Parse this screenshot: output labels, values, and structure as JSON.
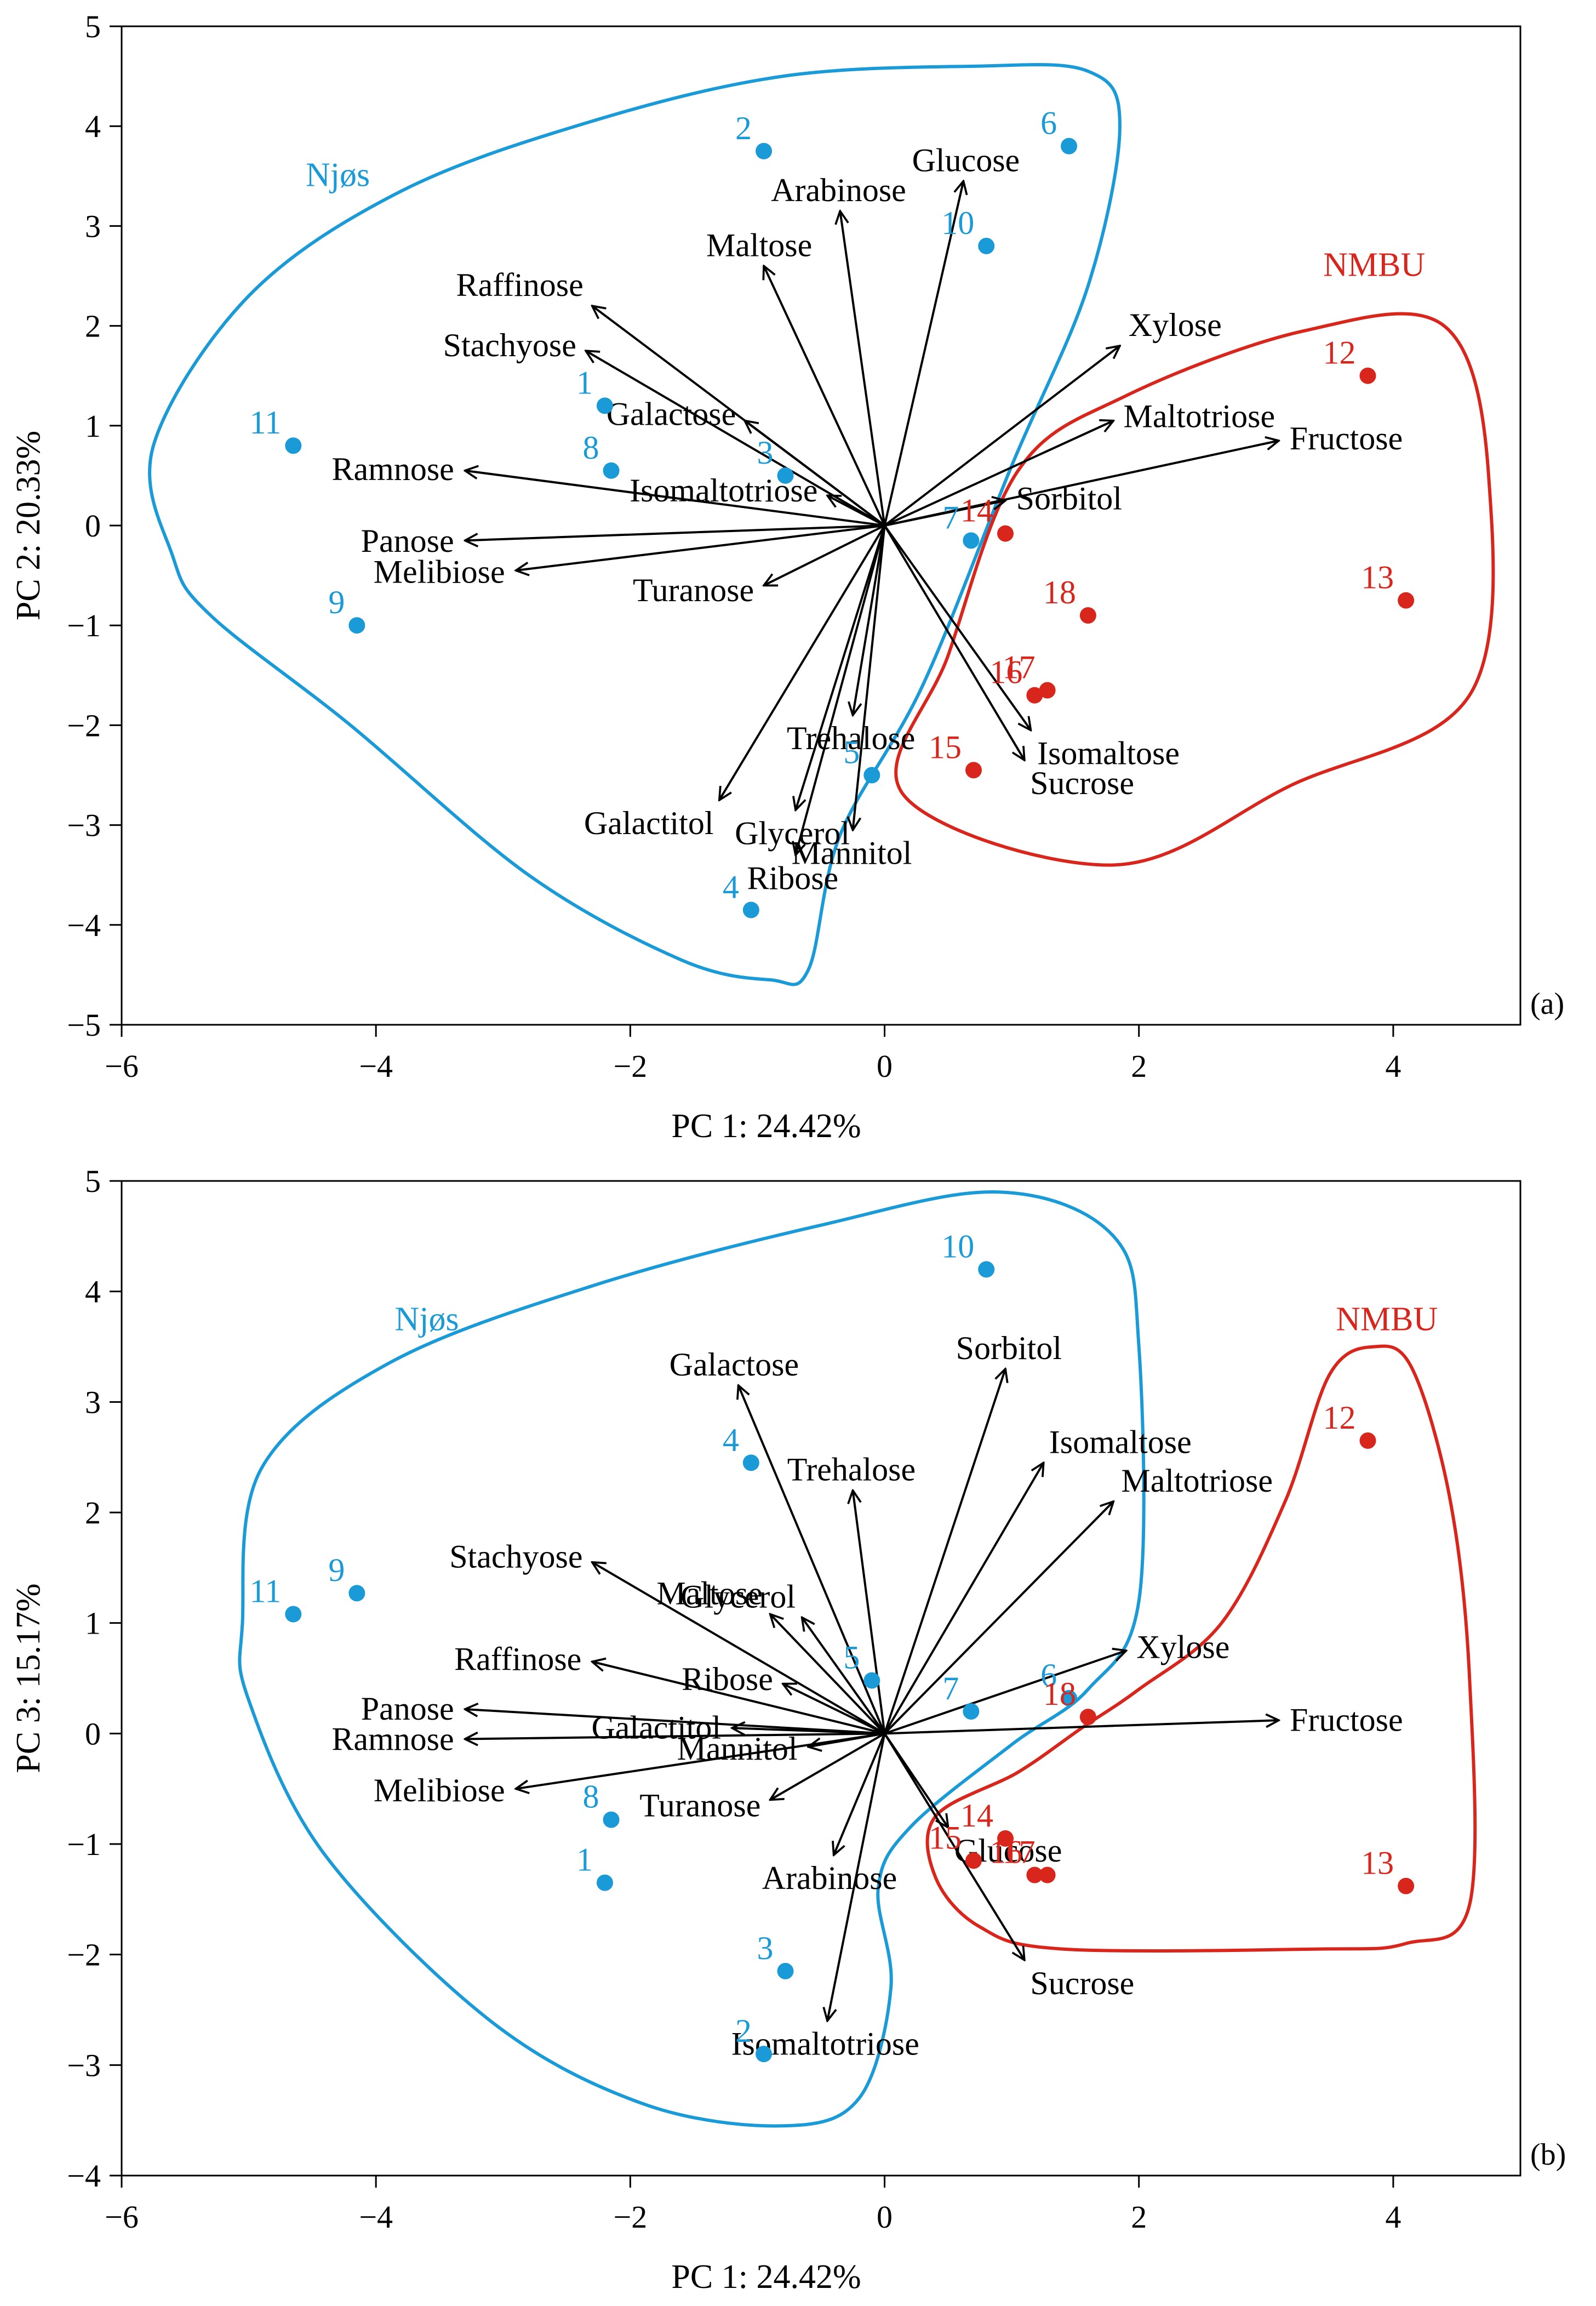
{
  "colors": {
    "njos": "#1a9ad6",
    "nmbu": "#d8261c",
    "axes": "#000000"
  },
  "chart_data": [
    {
      "type": "scatter",
      "panel": "(a)",
      "xlabel": "PC 1: 24.42%",
      "ylabel": "PC 2: 20.33%",
      "xlim": [
        -6,
        5
      ],
      "ylim": [
        -5,
        5
      ],
      "xticks": [
        "−6",
        "−4",
        "−2",
        "0",
        "2",
        "4"
      ],
      "yticks": [
        "−5",
        "−4",
        "−3",
        "−2",
        "−1",
        "0",
        "1",
        "2",
        "3",
        "4",
        "5"
      ],
      "groups": [
        {
          "name": "Njøs",
          "color": "#1a9ad6",
          "label_at": [
            -4.3,
            3.4
          ],
          "outline": [
            [
              -5.6,
              -0.3
            ],
            [
              -5.75,
              0.8
            ],
            [
              -5.0,
              2.3
            ],
            [
              -3.8,
              3.35
            ],
            [
              -2.3,
              4.05
            ],
            [
              -0.8,
              4.5
            ],
            [
              0.7,
              4.6
            ],
            [
              1.6,
              4.55
            ],
            [
              1.85,
              4.0
            ],
            [
              1.6,
              2.4
            ],
            [
              1.0,
              0.6
            ],
            [
              0.3,
              -1.6
            ],
            [
              -0.35,
              -3.1
            ],
            [
              -0.6,
              -4.45
            ],
            [
              -0.9,
              -4.55
            ],
            [
              -1.6,
              -4.35
            ],
            [
              -2.8,
              -3.5
            ],
            [
              -4.2,
              -2.0
            ],
            [
              -5.3,
              -0.9
            ],
            [
              -5.6,
              -0.3
            ]
          ]
        },
        {
          "name": "NMBU",
          "color": "#d8261c",
          "label_at": [
            3.85,
            2.5
          ],
          "outline": [
            [
              0.15,
              -2.7
            ],
            [
              0.5,
              -1.3
            ],
            [
              1.05,
              0.55
            ],
            [
              1.9,
              1.3
            ],
            [
              3.3,
              1.95
            ],
            [
              4.4,
              2.0
            ],
            [
              4.75,
              0.5
            ],
            [
              4.6,
              -1.7
            ],
            [
              3.2,
              -2.6
            ],
            [
              1.8,
              -3.4
            ],
            [
              0.15,
              -2.7
            ]
          ]
        }
      ],
      "points": [
        {
          "label": "1",
          "group": "Njøs",
          "x": -2.2,
          "y": 1.2
        },
        {
          "label": "2",
          "group": "Njøs",
          "x": -0.95,
          "y": 3.75
        },
        {
          "label": "3",
          "group": "Njøs",
          "x": -0.78,
          "y": 0.5
        },
        {
          "label": "4",
          "group": "Njøs",
          "x": -1.05,
          "y": -3.85
        },
        {
          "label": "5",
          "group": "Njøs",
          "x": -0.1,
          "y": -2.5
        },
        {
          "label": "6",
          "group": "Njøs",
          "x": 1.45,
          "y": 3.8
        },
        {
          "label": "7",
          "group": "Njøs",
          "x": 0.68,
          "y": -0.15
        },
        {
          "label": "8",
          "group": "Njøs",
          "x": -2.15,
          "y": 0.55
        },
        {
          "label": "9",
          "group": "Njøs",
          "x": -4.15,
          "y": -1.0
        },
        {
          "label": "10",
          "group": "Njøs",
          "x": 0.8,
          "y": 2.8
        },
        {
          "label": "11",
          "group": "Njøs",
          "x": -4.65,
          "y": 0.8
        },
        {
          "label": "12",
          "group": "NMBU",
          "x": 3.8,
          "y": 1.5
        },
        {
          "label": "13",
          "group": "NMBU",
          "x": 4.1,
          "y": -0.75
        },
        {
          "label": "14",
          "group": "NMBU",
          "x": 0.95,
          "y": -0.08
        },
        {
          "label": "15",
          "group": "NMBU",
          "x": 0.7,
          "y": -2.45
        },
        {
          "label": "16",
          "group": "NMBU",
          "x": 1.18,
          "y": -1.7
        },
        {
          "label": "17",
          "group": "NMBU",
          "x": 1.28,
          "y": -1.65
        },
        {
          "label": "18",
          "group": "NMBU",
          "x": 1.6,
          "y": -0.9
        }
      ],
      "loadings": [
        {
          "label": "Arabinose",
          "x": -0.35,
          "y": 3.15
        },
        {
          "label": "Glucose",
          "x": 0.62,
          "y": 3.45
        },
        {
          "label": "Maltose",
          "x": -0.95,
          "y": 2.6
        },
        {
          "label": "Raffinose",
          "x": -2.3,
          "y": 2.2
        },
        {
          "label": "Stachyose",
          "x": -2.35,
          "y": 1.75
        },
        {
          "label": "Galactose",
          "x": -1.1,
          "y": 1.05
        },
        {
          "label": "Isomaltotriose",
          "x": -0.45,
          "y": 0.3
        },
        {
          "label": "Ramnose",
          "x": -3.3,
          "y": 0.55
        },
        {
          "label": "Panose",
          "x": -3.3,
          "y": -0.15
        },
        {
          "label": "Melibiose",
          "x": -2.9,
          "y": -0.45
        },
        {
          "label": "Turanose",
          "x": -0.95,
          "y": -0.6
        },
        {
          "label": "Xylose",
          "x": 1.85,
          "y": 1.8
        },
        {
          "label": "Maltotriose",
          "x": 1.8,
          "y": 1.05
        },
        {
          "label": "Fructose",
          "x": 3.1,
          "y": 0.85
        },
        {
          "label": "Sorbitol",
          "x": 0.95,
          "y": 0.25
        },
        {
          "label": "Trehalose",
          "x": -0.25,
          "y": -1.9
        },
        {
          "label": "Isomaltose",
          "x": 1.15,
          "y": -2.05
        },
        {
          "label": "Sucrose",
          "x": 1.1,
          "y": -2.35
        },
        {
          "label": "Galactitol",
          "x": -1.3,
          "y": -2.75
        },
        {
          "label": "Glycerol",
          "x": -0.7,
          "y": -2.85
        },
        {
          "label": "Ribose",
          "x": -0.7,
          "y": -3.3
        },
        {
          "label": "Mannitol",
          "x": -0.25,
          "y": -3.05
        }
      ]
    },
    {
      "type": "scatter",
      "panel": "(b)",
      "xlabel": "PC 1: 24.42%",
      "ylabel": "PC 3: 15.17%",
      "xlim": [
        -6,
        5
      ],
      "ylim": [
        -4,
        5
      ],
      "xticks": [
        "−6",
        "−4",
        "−2",
        "0",
        "2",
        "4"
      ],
      "yticks": [
        "−4",
        "−3",
        "−2",
        "−1",
        "0",
        "1",
        "2",
        "3",
        "4",
        "5"
      ],
      "groups": [
        {
          "name": "Njøs",
          "color": "#1a9ad6",
          "label_at": [
            -3.6,
            3.65
          ],
          "outline": [
            [
              -5.05,
              1.0
            ],
            [
              -4.9,
              2.4
            ],
            [
              -3.9,
              3.35
            ],
            [
              -2.3,
              4.05
            ],
            [
              -0.5,
              4.6
            ],
            [
              0.9,
              4.9
            ],
            [
              1.8,
              4.5
            ],
            [
              2.0,
              3.5
            ],
            [
              2.0,
              1.2
            ],
            [
              1.6,
              0.4
            ],
            [
              1.0,
              -0.1
            ],
            [
              0.2,
              -0.85
            ],
            [
              -0.05,
              -1.4
            ],
            [
              0.05,
              -2.3
            ],
            [
              -0.2,
              -3.3
            ],
            [
              -0.8,
              -3.55
            ],
            [
              -1.9,
              -3.35
            ],
            [
              -3.1,
              -2.6
            ],
            [
              -4.4,
              -1.1
            ],
            [
              -5.0,
              0.3
            ],
            [
              -5.05,
              1.0
            ]
          ]
        },
        {
          "name": "NMBU",
          "color": "#d8261c",
          "label_at": [
            3.95,
            3.65
          ],
          "outline": [
            [
              0.4,
              -1.3
            ],
            [
              0.4,
              -0.75
            ],
            [
              1.05,
              -0.35
            ],
            [
              1.55,
              0.05
            ],
            [
              2.0,
              0.4
            ],
            [
              2.65,
              1.0
            ],
            [
              3.15,
              2.1
            ],
            [
              3.5,
              3.25
            ],
            [
              3.85,
              3.5
            ],
            [
              4.15,
              3.3
            ],
            [
              4.45,
              2.1
            ],
            [
              4.6,
              0.5
            ],
            [
              4.6,
              -1.55
            ],
            [
              4.1,
              -1.9
            ],
            [
              3.4,
              -1.95
            ],
            [
              1.4,
              -1.95
            ],
            [
              0.75,
              -1.75
            ],
            [
              0.4,
              -1.3
            ]
          ]
        }
      ],
      "points": [
        {
          "label": "1",
          "group": "Njøs",
          "x": -2.2,
          "y": -1.35
        },
        {
          "label": "2",
          "group": "Njøs",
          "x": -0.95,
          "y": -2.9
        },
        {
          "label": "3",
          "group": "Njøs",
          "x": -0.78,
          "y": -2.15
        },
        {
          "label": "4",
          "group": "Njøs",
          "x": -1.05,
          "y": 2.45
        },
        {
          "label": "5",
          "group": "Njøs",
          "x": -0.1,
          "y": 0.48
        },
        {
          "label": "6",
          "group": "Njøs",
          "x": 1.45,
          "y": 0.32
        },
        {
          "label": "7",
          "group": "Njøs",
          "x": 0.68,
          "y": 0.2
        },
        {
          "label": "8",
          "group": "Njøs",
          "x": -2.15,
          "y": -0.78
        },
        {
          "label": "9",
          "group": "Njøs",
          "x": -4.15,
          "y": 1.27
        },
        {
          "label": "10",
          "group": "Njøs",
          "x": 0.8,
          "y": 4.2
        },
        {
          "label": "11",
          "group": "Njøs",
          "x": -4.65,
          "y": 1.08
        },
        {
          "label": "12",
          "group": "NMBU",
          "x": 3.8,
          "y": 2.65
        },
        {
          "label": "13",
          "group": "NMBU",
          "x": 4.1,
          "y": -1.38
        },
        {
          "label": "14",
          "group": "NMBU",
          "x": 0.95,
          "y": -0.95
        },
        {
          "label": "15",
          "group": "NMBU",
          "x": 0.7,
          "y": -1.15
        },
        {
          "label": "16",
          "group": "NMBU",
          "x": 1.18,
          "y": -1.28
        },
        {
          "label": "17",
          "group": "NMBU",
          "x": 1.28,
          "y": -1.28
        },
        {
          "label": "18",
          "group": "NMBU",
          "x": 1.6,
          "y": 0.15
        }
      ],
      "loadings": [
        {
          "label": "Galactose",
          "x": -1.15,
          "y": 3.15
        },
        {
          "label": "Sorbitol",
          "x": 0.95,
          "y": 3.3
        },
        {
          "label": "Isomaltose",
          "x": 1.25,
          "y": 2.45
        },
        {
          "label": "Trehalose",
          "x": -0.25,
          "y": 2.2
        },
        {
          "label": "Maltotriose",
          "x": 1.8,
          "y": 2.1
        },
        {
          "label": "Stachyose",
          "x": -2.3,
          "y": 1.55
        },
        {
          "label": "Maltose",
          "x": -0.9,
          "y": 1.08
        },
        {
          "label": "Glycerol",
          "x": -0.65,
          "y": 1.05
        },
        {
          "label": "Raffinose",
          "x": -2.3,
          "y": 0.65
        },
        {
          "label": "Ribose",
          "x": -0.8,
          "y": 0.45
        },
        {
          "label": "Xylose",
          "x": 1.9,
          "y": 0.75
        },
        {
          "label": "Panose",
          "x": -3.3,
          "y": 0.22
        },
        {
          "label": "Galactitol",
          "x": -1.2,
          "y": 0.05
        },
        {
          "label": "Ramnose",
          "x": -3.3,
          "y": -0.05
        },
        {
          "label": "Fructose",
          "x": 3.1,
          "y": 0.12
        },
        {
          "label": "Mannitol",
          "x": -0.6,
          "y": -0.12
        },
        {
          "label": "Melibiose",
          "x": -2.9,
          "y": -0.5
        },
        {
          "label": "Glucose",
          "x": 0.5,
          "y": -0.85
        },
        {
          "label": "Turanose",
          "x": -0.9,
          "y": -0.6
        },
        {
          "label": "Arabinose",
          "x": -0.4,
          "y": -1.1
        },
        {
          "label": "Sucrose",
          "x": 1.1,
          "y": -2.05
        },
        {
          "label": "Isomaltotriose",
          "x": -0.45,
          "y": -2.6
        }
      ]
    }
  ]
}
